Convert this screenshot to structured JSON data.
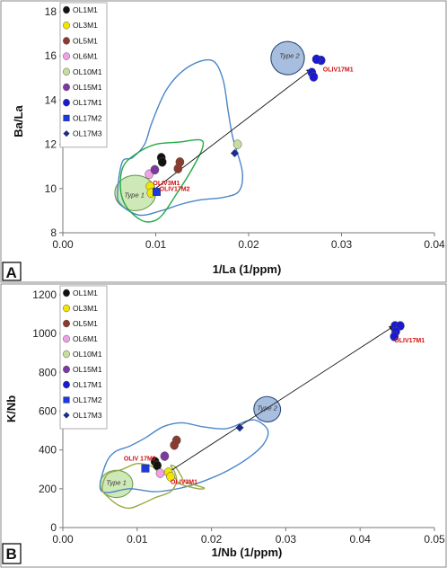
{
  "colors": {
    "OL1M1": "#111111",
    "OL3M1": "#f2e600",
    "OL5M1": "#8b3a2e",
    "OL6M1": "#f0a0e6",
    "OL10M1": "#c5dea0",
    "OL15M1": "#7b3aa0",
    "OL17M1": "#1a1ad0",
    "OL17M2": "#1a3ae0",
    "OL17M3": "#1a2a9a",
    "envelope_blue": "#4a86c8",
    "envelope_green": "#22aa44",
    "envelope_olive": "#9aaa44",
    "type1_fill": "#cfe8b8",
    "type2_fill": "#a8bede",
    "annotation": "#d01010"
  },
  "chart_data": [
    {
      "panel_label": "A",
      "type": "scatter",
      "xlabel": "1/La (1/ppm)",
      "ylabel": "Ba/La",
      "xlim": [
        0,
        0.04
      ],
      "ylim": [
        8,
        18
      ],
      "xticks": [
        "0.00",
        "0.01",
        "0.02",
        "0.03",
        "0.04"
      ],
      "yticks": [
        "8",
        "10",
        "12",
        "14",
        "16",
        "18"
      ],
      "grid": false,
      "legend_placement": "top-left",
      "legend": [
        "OL1M1",
        "OL3M1",
        "OL5M1",
        "OL6M1",
        "OL10M1",
        "OL15M1",
        "OL17M1",
        "OL17M2",
        "OL17M3"
      ],
      "series": [
        {
          "name": "OL1M1",
          "marker": "circle",
          "points": [
            [
              0.0106,
              11.4
            ],
            [
              0.0107,
              11.2
            ]
          ]
        },
        {
          "name": "OL3M1",
          "marker": "circle",
          "points": [
            [
              0.0094,
              10.1
            ],
            [
              0.0095,
              9.8
            ]
          ]
        },
        {
          "name": "OL5M1",
          "marker": "circle",
          "points": [
            [
              0.0126,
              11.2
            ],
            [
              0.0124,
              10.9
            ]
          ]
        },
        {
          "name": "OL6M1",
          "marker": "circle",
          "points": [
            [
              0.0093,
              10.65
            ]
          ]
        },
        {
          "name": "OL10M1",
          "marker": "circle",
          "points": [
            [
              0.0188,
              12.0
            ]
          ]
        },
        {
          "name": "OL15M1",
          "marker": "circle",
          "points": [
            [
              0.0099,
              10.85
            ]
          ]
        },
        {
          "name": "OL17M1",
          "marker": "circle",
          "points": [
            [
              0.0278,
              15.8
            ],
            [
              0.0273,
              15.85
            ],
            [
              0.0268,
              15.25
            ],
            [
              0.027,
              15.05
            ]
          ]
        },
        {
          "name": "OL17M2",
          "marker": "square",
          "points": [
            [
              0.0101,
              9.85
            ]
          ]
        },
        {
          "name": "OL17M3",
          "marker": "diamond",
          "points": [
            [
              0.0185,
              11.6
            ]
          ]
        }
      ],
      "annotations": [
        {
          "text": "Type 2",
          "x": 0.0244,
          "y": 15.9
        },
        {
          "text": "Type 1",
          "x": 0.0077,
          "y": 9.6
        },
        {
          "text": "OLIV17M1",
          "x": 0.028,
          "y": 15.3
        },
        {
          "text": "OLIV3M1",
          "x": 0.0097,
          "y": 10.15
        },
        {
          "text": "OLIV17M2",
          "x": 0.0104,
          "y": 9.9
        }
      ],
      "trend_line": [
        [
          0.0095,
          9.85
        ],
        [
          0.0268,
          15.4
        ]
      ],
      "envelopes": {
        "blue": [
          [
            0.0059,
            9.9
          ],
          [
            0.0064,
            11.2
          ],
          [
            0.0075,
            11.4
          ],
          [
            0.0088,
            12.0
          ],
          [
            0.0096,
            13.0
          ],
          [
            0.0112,
            14.5
          ],
          [
            0.0135,
            15.5
          ],
          [
            0.016,
            15.8
          ],
          [
            0.0172,
            15.0
          ],
          [
            0.0178,
            13.5
          ],
          [
            0.0183,
            12.3
          ],
          [
            0.0193,
            10.8
          ],
          [
            0.019,
            9.9
          ],
          [
            0.0173,
            9.6
          ],
          [
            0.015,
            9.5
          ],
          [
            0.0128,
            9.3
          ],
          [
            0.0106,
            9.0
          ],
          [
            0.0082,
            8.8
          ],
          [
            0.0062,
            9.3
          ]
        ],
        "green": [
          [
            0.0062,
            10.0
          ],
          [
            0.0065,
            11.0
          ],
          [
            0.008,
            11.6
          ],
          [
            0.01,
            12.0
          ],
          [
            0.0125,
            12.1
          ],
          [
            0.0148,
            12.2
          ],
          [
            0.015,
            11.8
          ],
          [
            0.0138,
            10.8
          ],
          [
            0.0123,
            9.8
          ],
          [
            0.0107,
            8.8
          ],
          [
            0.0095,
            8.5
          ],
          [
            0.0083,
            8.6
          ],
          [
            0.0068,
            9.2
          ]
        ]
      },
      "shapes": [
        {
          "label": "Type 1",
          "center": [
            0.0078,
            9.8
          ],
          "rx": 0.0022,
          "ry": 0.8
        },
        {
          "label": "Type 2",
          "center": [
            0.0242,
            15.9
          ],
          "rx": 0.0018,
          "ry": 0.75
        }
      ]
    },
    {
      "panel_label": "B",
      "type": "scatter",
      "xlabel": "1/Nb (1/ppm)",
      "ylabel": "K/Nb",
      "xlim": [
        0,
        0.05
      ],
      "ylim": [
        0,
        1200
      ],
      "xticks": [
        "0.00",
        "0.01",
        "0.02",
        "0.03",
        "0.04",
        "0.05"
      ],
      "yticks": [
        "0",
        "200",
        "400",
        "600",
        "800",
        "1000",
        "1200"
      ],
      "grid": false,
      "legend_placement": "top-left",
      "legend": [
        "OL1M1",
        "OL3M1",
        "OL5M1",
        "OL6M1",
        "OL10M1",
        "OL15M1",
        "OL17M1",
        "OL17M2",
        "OL17M3"
      ],
      "series": [
        {
          "name": "OL1M1",
          "marker": "circle",
          "points": [
            [
              0.0124,
              340
            ],
            [
              0.0127,
              320
            ]
          ]
        },
        {
          "name": "OL3M1",
          "marker": "circle",
          "points": [
            [
              0.0142,
              285
            ],
            [
              0.0145,
              262
            ]
          ]
        },
        {
          "name": "OL5M1",
          "marker": "circle",
          "points": [
            [
              0.0153,
              450
            ],
            [
              0.015,
              425
            ]
          ]
        },
        {
          "name": "OL6M1",
          "marker": "circle",
          "points": [
            [
              0.0131,
              280
            ]
          ]
        },
        {
          "name": "OL10M1",
          "marker": "circle",
          "points": []
        },
        {
          "name": "OL15M1",
          "marker": "circle",
          "points": [
            [
              0.0137,
              368
            ]
          ]
        },
        {
          "name": "OL17M1",
          "marker": "circle",
          "points": [
            [
              0.0447,
              1040
            ],
            [
              0.0454,
              1040
            ],
            [
              0.0448,
              1010
            ],
            [
              0.0446,
              985
            ]
          ]
        },
        {
          "name": "OL17M2",
          "marker": "square",
          "points": [
            [
              0.0111,
              305
            ]
          ]
        },
        {
          "name": "OL17M3",
          "marker": "diamond",
          "points": [
            [
              0.0238,
              515
            ]
          ]
        }
      ],
      "annotations": [
        {
          "text": "Type 2",
          "x": 0.0275,
          "y": 605
        },
        {
          "text": "Type 1",
          "x": 0.0072,
          "y": 220
        },
        {
          "text": "OLIV17M1",
          "x": 0.0446,
          "y": 955
        },
        {
          "text": "OLIV 17M2",
          "x": 0.0082,
          "y": 345
        },
        {
          "text": "OLIV3M1",
          "x": 0.0145,
          "y": 225
        }
      ],
      "trend_line": [
        [
          0.0142,
          285
        ],
        [
          0.0446,
          1040
        ]
      ],
      "envelopes": {
        "blue": [
          [
            0.005,
            210
          ],
          [
            0.0058,
            330
          ],
          [
            0.007,
            390
          ],
          [
            0.009,
            420
          ],
          [
            0.011,
            460
          ],
          [
            0.0135,
            520
          ],
          [
            0.016,
            540
          ],
          [
            0.0188,
            520
          ],
          [
            0.022,
            510
          ],
          [
            0.0248,
            550
          ],
          [
            0.0262,
            550
          ],
          [
            0.0276,
            500
          ],
          [
            0.027,
            430
          ],
          [
            0.025,
            360
          ],
          [
            0.022,
            290
          ],
          [
            0.019,
            240
          ],
          [
            0.016,
            205
          ],
          [
            0.0125,
            185
          ],
          [
            0.009,
            200
          ],
          [
            0.006,
            180
          ]
        ],
        "olive": [
          [
            0.0053,
            200
          ],
          [
            0.006,
            275
          ],
          [
            0.008,
            300
          ],
          [
            0.01,
            330
          ],
          [
            0.012,
            315
          ],
          [
            0.0128,
            290
          ],
          [
            0.0148,
            265
          ],
          [
            0.0158,
            225
          ],
          [
            0.0182,
            200
          ],
          [
            0.019,
            205
          ],
          [
            0.0172,
            225
          ],
          [
            0.0163,
            240
          ],
          [
            0.016,
            260
          ],
          [
            0.0152,
            310
          ],
          [
            0.0145,
            320
          ],
          [
            0.015,
            290
          ],
          [
            0.0153,
            240
          ],
          [
            0.0145,
            185
          ],
          [
            0.0125,
            155
          ],
          [
            0.0105,
            120
          ],
          [
            0.009,
            100
          ],
          [
            0.0075,
            115
          ],
          [
            0.006,
            160
          ]
        ]
      },
      "shapes": [
        {
          "label": "Type 1",
          "center": [
            0.0072,
            225
          ],
          "rx": 0.0022,
          "ry": 70
        },
        {
          "label": "Type 2",
          "center": [
            0.0275,
            610
          ],
          "rx": 0.0018,
          "ry": 65
        }
      ]
    }
  ]
}
